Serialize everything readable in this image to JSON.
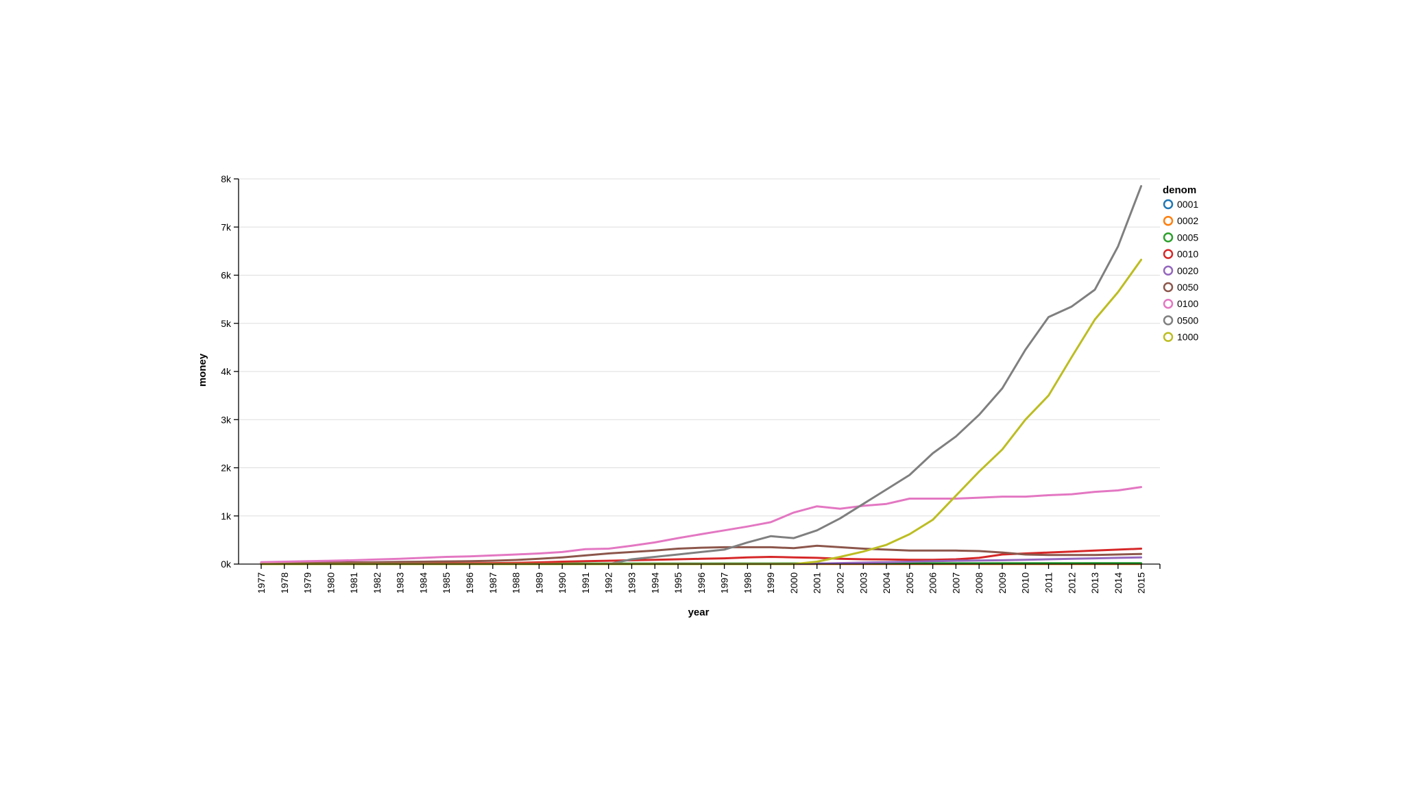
{
  "chart_data": {
    "type": "line",
    "xlabel": "year",
    "ylabel": "money",
    "ylim": [
      0,
      8000
    ],
    "yticks": [
      0,
      1000,
      2000,
      3000,
      4000,
      5000,
      6000,
      7000,
      8000
    ],
    "ytick_labels": [
      "0k",
      "1k",
      "2k",
      "3k",
      "4k",
      "5k",
      "6k",
      "7k",
      "8k"
    ],
    "grid": "horizontal",
    "legend": {
      "title": "denom",
      "placement": "right"
    },
    "x": [
      "1977",
      "1978",
      "1979",
      "1980",
      "1981",
      "1982",
      "1983",
      "1984",
      "1985",
      "1986",
      "1987",
      "1988",
      "1989",
      "1990",
      "1991",
      "1992",
      "1993",
      "1994",
      "1995",
      "1996",
      "1997",
      "1998",
      "1999",
      "2000",
      "2001",
      "2002",
      "2003",
      "2004",
      "2005",
      "2006",
      "2007",
      "2008",
      "2009",
      "2010",
      "2011",
      "2012",
      "2013",
      "2014",
      "2015"
    ],
    "series": [
      {
        "name": "0001",
        "color": "#1f77b4",
        "values": [
          5,
          5,
          6,
          6,
          6,
          7,
          7,
          7,
          8,
          8,
          8,
          9,
          9,
          9,
          10,
          10,
          10,
          11,
          11,
          11,
          12,
          12,
          12,
          13,
          13,
          13,
          14,
          14,
          14,
          15,
          15,
          15,
          15,
          16,
          16,
          16,
          17,
          17,
          17
        ]
      },
      {
        "name": "0002",
        "color": "#ff7f0e",
        "values": [
          2,
          2,
          2,
          2,
          2,
          2,
          2,
          2,
          2,
          2,
          2,
          2,
          2,
          2,
          2,
          2,
          2,
          2,
          2,
          2,
          2,
          2,
          2,
          2,
          2,
          2,
          2,
          2,
          2,
          2,
          2,
          2,
          2,
          2,
          2,
          2,
          2,
          2,
          2
        ]
      },
      {
        "name": "0005",
        "color": "#2ca02c",
        "values": [
          6,
          6,
          7,
          7,
          7,
          8,
          8,
          8,
          9,
          9,
          9,
          10,
          10,
          10,
          11,
          11,
          11,
          12,
          12,
          12,
          13,
          13,
          13,
          14,
          14,
          14,
          15,
          15,
          15,
          16,
          16,
          16,
          17,
          17,
          17,
          18,
          18,
          18,
          19
        ]
      },
      {
        "name": "0010",
        "color": "#d62728",
        "values": [
          10,
          11,
          11,
          12,
          12,
          13,
          13,
          14,
          15,
          17,
          20,
          25,
          35,
          50,
          60,
          70,
          80,
          90,
          100,
          110,
          120,
          140,
          150,
          140,
          130,
          110,
          100,
          95,
          90,
          90,
          100,
          130,
          200,
          220,
          240,
          260,
          280,
          300,
          320
        ]
      },
      {
        "name": "0020",
        "color": "#9467bd",
        "values": [
          2,
          2,
          2,
          2,
          2,
          2,
          2,
          2,
          2,
          2,
          2,
          2,
          2,
          2,
          2,
          2,
          2,
          2,
          3,
          3,
          3,
          3,
          3,
          4,
          10,
          20,
          30,
          40,
          50,
          60,
          70,
          75,
          80,
          90,
          100,
          110,
          120,
          130,
          140
        ]
      },
      {
        "name": "0050",
        "color": "#8c564b",
        "values": [
          25,
          27,
          30,
          33,
          36,
          40,
          45,
          50,
          55,
          60,
          70,
          85,
          110,
          140,
          180,
          220,
          250,
          280,
          320,
          340,
          350,
          350,
          350,
          330,
          380,
          350,
          320,
          300,
          280,
          280,
          280,
          270,
          240,
          200,
          190,
          190,
          190,
          200,
          210
        ]
      },
      {
        "name": "0100",
        "color": "#e377c2",
        "values": [
          40,
          50,
          60,
          70,
          80,
          95,
          110,
          130,
          150,
          160,
          180,
          200,
          220,
          250,
          310,
          320,
          380,
          450,
          540,
          620,
          700,
          780,
          870,
          1070,
          1200,
          1150,
          1210,
          1250,
          1360,
          1360,
          1360,
          1380,
          1400,
          1400,
          1430,
          1450,
          1500,
          1530,
          1600
        ]
      },
      {
        "name": "0500",
        "color": "#7f7f7f",
        "values": [
          0,
          0,
          0,
          0,
          0,
          0,
          0,
          0,
          0,
          0,
          0,
          0,
          0,
          0,
          0,
          0,
          100,
          150,
          200,
          250,
          300,
          450,
          580,
          540,
          700,
          950,
          1250,
          1550,
          1850,
          2300,
          2650,
          3100,
          3650,
          4450,
          5130,
          5350,
          5700,
          6600,
          7850
        ]
      },
      {
        "name": "1000",
        "color": "#bcbd22",
        "values": [
          0,
          0,
          0,
          0,
          0,
          0,
          0,
          0,
          0,
          0,
          0,
          0,
          0,
          0,
          0,
          0,
          0,
          0,
          0,
          0,
          0,
          0,
          0,
          0,
          50,
          150,
          260,
          400,
          620,
          920,
          1420,
          1920,
          2380,
          3000,
          3500,
          4300,
          5080,
          5650,
          6320
        ]
      }
    ]
  }
}
